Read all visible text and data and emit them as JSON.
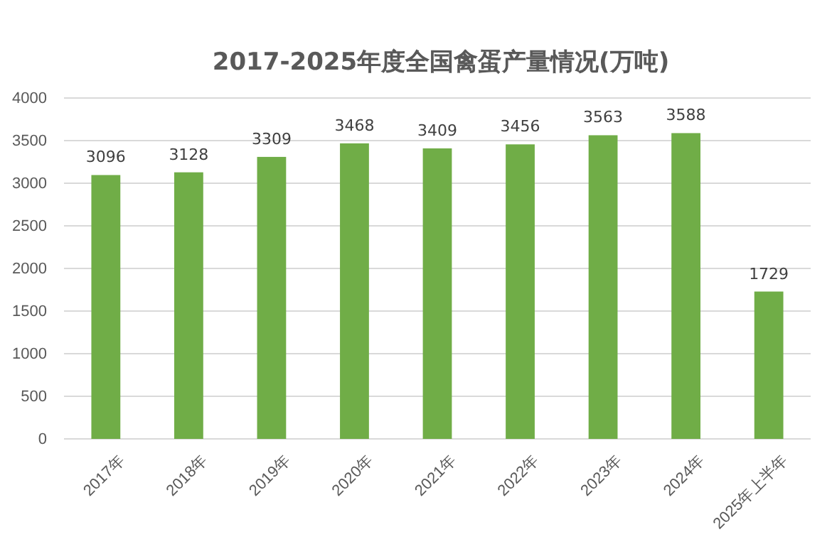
{
  "chart_data": {
    "type": "bar",
    "title": "2017-2025年度全国禽蛋产量情况(万吨)",
    "categories": [
      "2017年",
      "2018年",
      "2019年",
      "2020年",
      "2021年",
      "2022年",
      "2023年",
      "2024年",
      "2025年上半年"
    ],
    "values": [
      3096,
      3128,
      3309,
      3468,
      3409,
      3456,
      3563,
      3588,
      1729
    ],
    "color": "#70ad47",
    "ylim": [
      0,
      4000
    ],
    "yticks": [
      0,
      500,
      1000,
      1500,
      2000,
      2500,
      3000,
      3500,
      4000
    ],
    "grid": "y",
    "data_labels": true
  }
}
